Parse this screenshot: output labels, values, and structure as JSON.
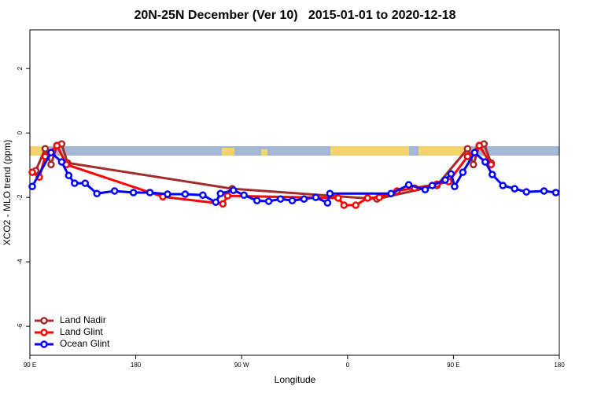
{
  "chart_data": {
    "type": "line",
    "title": "20N-25N December (Ver 10)   2015-01-01 to 2020-12-18",
    "x_label": "Longitude",
    "y_label": "XCO2 - MLO trend (ppm)",
    "xlim": [
      90,
      540
    ],
    "ylim": [
      -6.9,
      3.2
    ],
    "xticks": [
      {
        "value": 90,
        "label": "90 E"
      },
      {
        "value": 180,
        "label": "180"
      },
      {
        "value": 270,
        "label": "90 W"
      },
      {
        "value": 360,
        "label": "0"
      },
      {
        "value": 450,
        "label": "90 E"
      },
      {
        "value": 540,
        "label": "180"
      }
    ],
    "yticks": [
      2,
      0,
      -2,
      -4,
      -6
    ],
    "legend": "bottom-left",
    "series": [
      {
        "name": "Land Nadir",
        "color": "#a52a2a",
        "x": [
          95,
          103,
          108,
          113,
          117,
          122,
          262,
          385,
          436,
          462,
          467,
          472,
          476,
          482
        ],
        "values": [
          -1.17,
          -0.49,
          -0.98,
          -0.39,
          -0.34,
          -0.93,
          -1.73,
          -2.05,
          -1.63,
          -0.49,
          -0.98,
          -0.39,
          -0.34,
          -0.93
        ]
      },
      {
        "name": "Land Glint",
        "color": "#ff0000",
        "x": [
          92,
          98,
          103,
          113,
          121,
          203,
          254,
          258,
          352,
          357,
          367,
          377,
          387,
          402,
          417,
          436,
          446,
          462,
          472,
          482
        ],
        "values": [
          -1.22,
          -1.37,
          -0.73,
          -0.39,
          -0.98,
          -1.98,
          -2.2,
          -1.95,
          -2.02,
          -2.24,
          -2.24,
          -2.02,
          -2.0,
          -1.8,
          -1.71,
          -1.59,
          -1.51,
          -0.73,
          -0.39,
          -0.98
        ]
      },
      {
        "name": "Ocean Glint",
        "color": "#0000ff",
        "x": [
          92,
          108,
          117,
          123,
          128,
          137,
          147,
          162,
          178,
          192,
          207,
          222,
          237,
          248,
          252,
          263,
          272,
          283,
          293,
          303,
          313,
          323,
          333,
          343,
          345,
          397,
          412,
          426,
          432,
          443,
          448,
          451,
          458,
          468,
          477,
          483,
          492,
          502,
          512,
          527,
          537
        ],
        "values": [
          -1.66,
          -0.61,
          -0.9,
          -1.32,
          -1.56,
          -1.56,
          -1.88,
          -1.8,
          -1.85,
          -1.85,
          -1.9,
          -1.9,
          -1.93,
          -2.15,
          -1.88,
          -1.78,
          -1.93,
          -2.1,
          -2.12,
          -2.05,
          -2.1,
          -2.05,
          -2.0,
          -2.17,
          -1.88,
          -1.88,
          -1.61,
          -1.76,
          -1.63,
          -1.46,
          -1.27,
          -1.66,
          -1.22,
          -0.61,
          -0.9,
          -1.29,
          -1.63,
          -1.73,
          -1.83,
          -1.8,
          -1.85
        ]
      }
    ]
  }
}
